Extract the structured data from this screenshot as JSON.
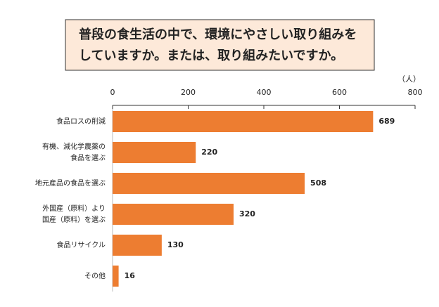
{
  "chart_data": {
    "type": "barh",
    "title": [
      "普段の食生活の中で、環境にやさしい取り組みを",
      "していますか。または、取り組みたいですか。"
    ],
    "xlabel": "（人）",
    "categories": [
      [
        "食品ロスの削減"
      ],
      [
        "有機、減化学農薬の",
        "食品を選ぶ"
      ],
      [
        "地元産品の食品を選ぶ"
      ],
      [
        "外国産（原料）より",
        "国産（原料）を選ぶ"
      ],
      [
        "食品リサイクル"
      ],
      [
        "その他"
      ]
    ],
    "values": [
      689,
      220,
      508,
      320,
      130,
      16
    ],
    "color": "#ed7d31",
    "xlim": [
      0,
      800
    ],
    "xticks": [
      0,
      200,
      400,
      600,
      800
    ],
    "grid": false
  }
}
